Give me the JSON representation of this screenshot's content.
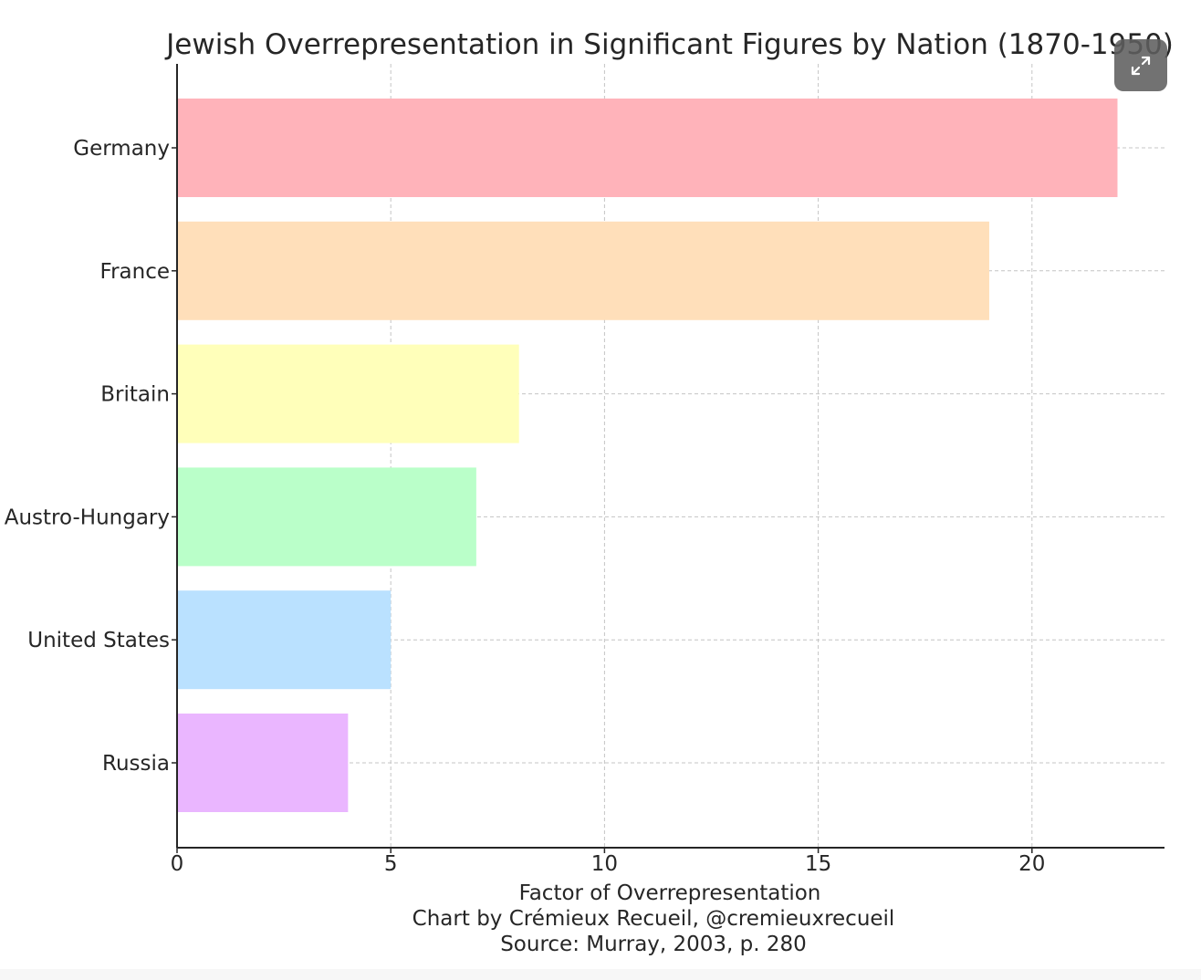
{
  "chart_data": {
    "type": "bar",
    "orientation": "horizontal",
    "title": "Jewish Overrepresentation in Significant Figures by Nation (1870-1950)",
    "categories": [
      "Germany",
      "France",
      "Britain",
      "Austro-Hungary",
      "United States",
      "Russia"
    ],
    "values": [
      22,
      19,
      8,
      7,
      5,
      4
    ],
    "colors": [
      "#ffb3ba",
      "#ffdfba",
      "#ffffba",
      "#baffc9",
      "#bae1ff",
      "#eab6ff"
    ],
    "xlabel": "Factor of Overrepresentation",
    "ylabel": "",
    "xlim": [
      0,
      23.1
    ],
    "xticks": [
      0,
      5,
      10,
      15,
      20
    ],
    "grid": true,
    "grid_style": "dashed",
    "footer": [
      "Factor of Overrepresentation",
      "Chart by Crémieux Recueil, @cremieuxrecueil",
      "Source: Murray, 2003, p. 280"
    ]
  },
  "controls": {
    "expand_icon": "expand-icon"
  }
}
